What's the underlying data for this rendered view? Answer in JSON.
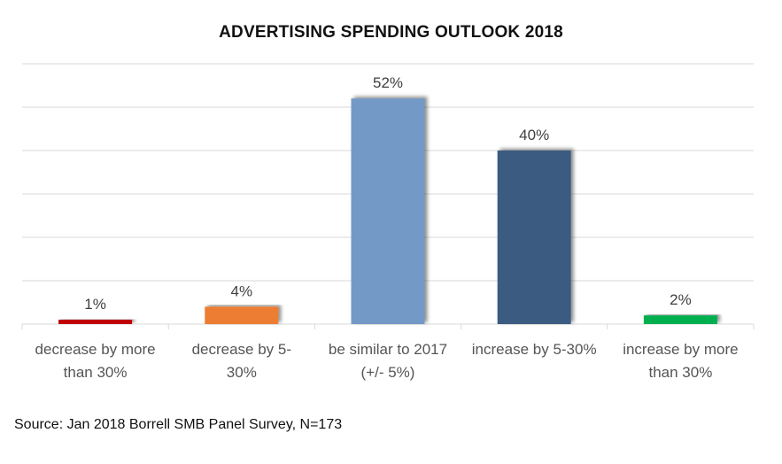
{
  "chart_data": {
    "type": "bar",
    "title": "ADVERTISING SPENDING OUTLOOK 2018",
    "categories": [
      "decrease by more\nthan 30%",
      "decrease by 5-\n30%",
      "be similar to 2017\n(+/- 5%)",
      "increase by 5-30%",
      "increase by more\nthan 30%"
    ],
    "values": [
      1,
      4,
      52,
      40,
      2
    ],
    "data_labels": [
      "1%",
      "4%",
      "52%",
      "40%",
      "2%"
    ],
    "colors": [
      "#C00000",
      "#ED7D31",
      "#7399C6",
      "#3B5B80",
      "#00B050"
    ],
    "xlabel": "",
    "ylabel": "",
    "ylim": [
      0,
      60
    ],
    "ytick_step": 10,
    "grid": true,
    "legend": "none",
    "unit": "%"
  },
  "source": "Source: Jan 2018 Borrell SMB Panel Survey, N=173"
}
